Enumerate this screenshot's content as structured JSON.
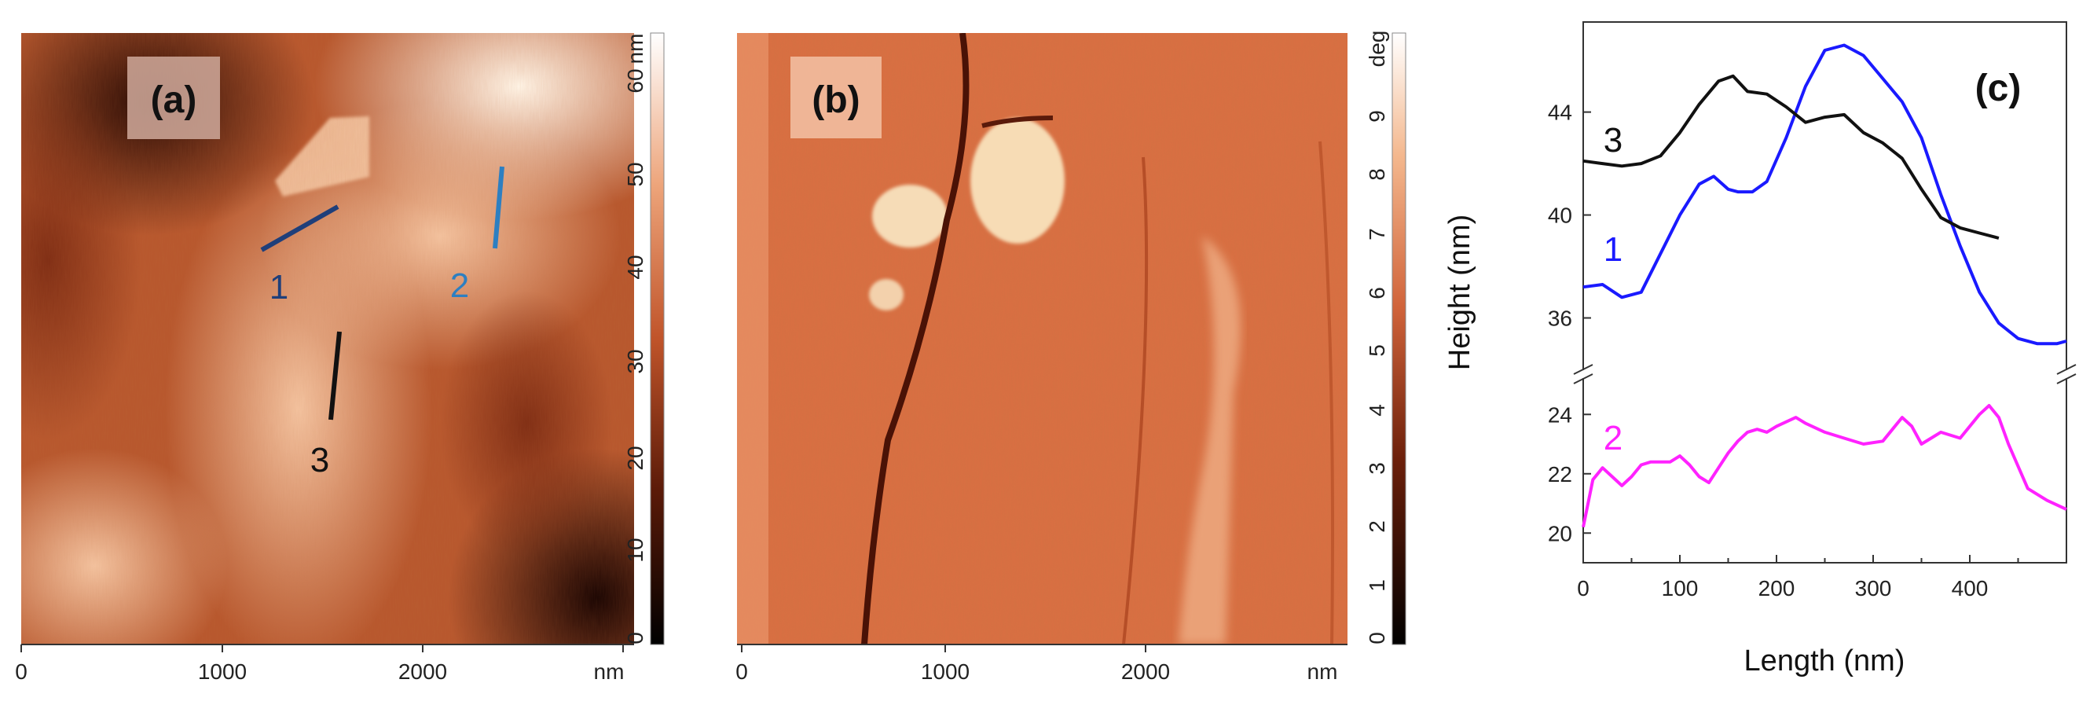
{
  "panel_a": {
    "label": "(a)",
    "x_ticks": [
      "0",
      "1000",
      "2000"
    ],
    "x_unit": "nm",
    "colorbar_unit": "nm",
    "colorbar_ticks": [
      "0",
      "10",
      "20",
      "30",
      "40",
      "50",
      "60"
    ],
    "line_labels": [
      {
        "text": "1",
        "color": "#1f3f7a"
      },
      {
        "text": "2",
        "color": "#2d7fc1"
      },
      {
        "text": "3",
        "color": "#111111"
      }
    ]
  },
  "panel_b": {
    "label": "(b)",
    "x_ticks": [
      "0",
      "1000",
      "2000"
    ],
    "x_unit": "nm",
    "colorbar_unit": "deg",
    "colorbar_ticks": [
      "0",
      "1",
      "2",
      "3",
      "4",
      "5",
      "6",
      "7",
      "8",
      "9"
    ]
  },
  "chart_data": {
    "type": "line",
    "panel_label": "(c)",
    "xlabel": "Length (nm)",
    "ylabel": "Height (nm)",
    "xlim": [
      0,
      500
    ],
    "x_ticks": [
      0,
      100,
      200,
      300,
      400
    ],
    "y_axis_break": true,
    "upper_ylim": [
      34,
      47.5
    ],
    "upper_y_ticks": [
      36,
      40,
      44
    ],
    "lower_ylim": [
      19,
      25.2
    ],
    "lower_y_ticks": [
      20,
      22,
      24
    ],
    "grid": false,
    "series": [
      {
        "name": "1",
        "color": "#1a1aff",
        "segment": "upper",
        "x": [
          0,
          20,
          40,
          60,
          80,
          100,
          120,
          135,
          150,
          160,
          175,
          190,
          210,
          230,
          250,
          270,
          290,
          310,
          330,
          350,
          370,
          390,
          410,
          430,
          450,
          470,
          490,
          500
        ],
        "y": [
          37.2,
          37.3,
          36.8,
          37.0,
          38.5,
          40.0,
          41.2,
          41.5,
          41.0,
          40.9,
          40.9,
          41.3,
          43.0,
          45.0,
          46.4,
          46.6,
          46.2,
          45.3,
          44.4,
          43.0,
          40.8,
          38.8,
          37.0,
          35.8,
          35.2,
          35.0,
          35.0,
          35.1
        ]
      },
      {
        "name": "3",
        "color": "#111111",
        "segment": "upper",
        "x": [
          0,
          20,
          40,
          60,
          80,
          100,
          120,
          140,
          155,
          170,
          190,
          210,
          230,
          250,
          270,
          290,
          310,
          330,
          350,
          370,
          390,
          410,
          430
        ],
        "y": [
          42.1,
          42.0,
          41.9,
          42.0,
          42.3,
          43.2,
          44.3,
          45.2,
          45.4,
          44.8,
          44.7,
          44.2,
          43.6,
          43.8,
          43.9,
          43.2,
          42.8,
          42.2,
          41.0,
          39.9,
          39.5,
          39.3,
          39.1
        ]
      },
      {
        "name": "2",
        "color": "#ff22ff",
        "segment": "lower",
        "x": [
          0,
          10,
          20,
          30,
          40,
          50,
          60,
          70,
          90,
          100,
          110,
          120,
          130,
          140,
          150,
          160,
          170,
          180,
          190,
          200,
          220,
          230,
          250,
          270,
          290,
          310,
          320,
          330,
          340,
          350,
          360,
          370,
          390,
          410,
          420,
          430,
          440,
          460,
          480,
          500
        ],
        "y": [
          20.2,
          21.8,
          22.2,
          21.9,
          21.6,
          21.9,
          22.3,
          22.4,
          22.4,
          22.6,
          22.3,
          21.9,
          21.7,
          22.2,
          22.7,
          23.1,
          23.4,
          23.5,
          23.4,
          23.6,
          23.9,
          23.7,
          23.4,
          23.2,
          23.0,
          23.1,
          23.5,
          23.9,
          23.6,
          23.0,
          23.2,
          23.4,
          23.2,
          24.0,
          24.3,
          23.9,
          23.0,
          21.5,
          21.1,
          20.8
        ]
      }
    ]
  }
}
